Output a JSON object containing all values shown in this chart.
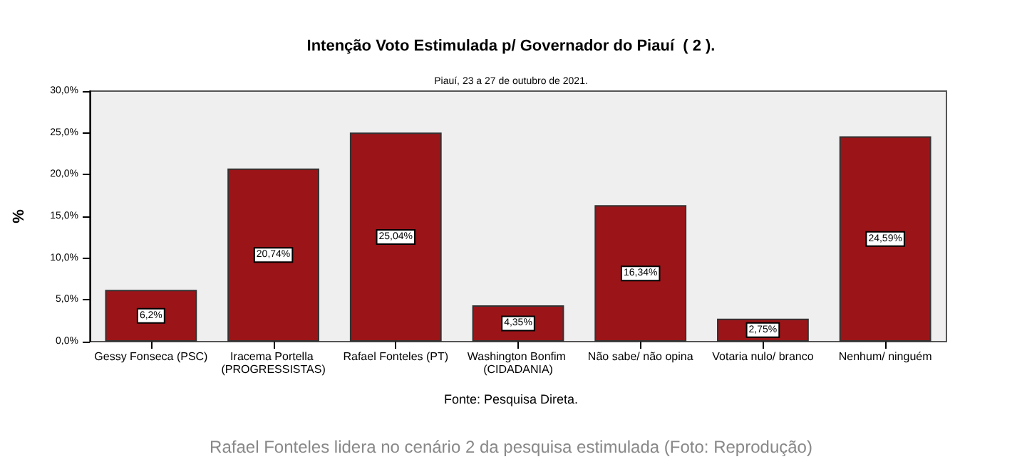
{
  "chart_data": {
    "type": "bar",
    "title": "Intenção Voto Estimulada p/ Governador do Piauí  ( 2 ).",
    "subtitle": "Piauí, 23 a 27 de outubro de 2021.",
    "ylabel": "%",
    "categories": [
      "Gessy Fonseca (PSC)",
      "Iracema Portella (PROGRESSISTAS)",
      "Rafael Fonteles (PT)",
      "Washington Bonfim (CIDADANIA)",
      "Não sabe/ não opina",
      "Votaria nulo/ branco",
      "Nenhum/ ninguém"
    ],
    "values": [
      6.2,
      20.74,
      25.04,
      4.35,
      16.34,
      2.75,
      24.59
    ],
    "value_labels": [
      "6,2%",
      "20,74%",
      "25,04%",
      "4,35%",
      "16,34%",
      "2,75%",
      "24,59%"
    ],
    "color": "#9b1518",
    "ylim": [
      0,
      30
    ],
    "yticks": [
      {
        "value": 0,
        "label": "0,0%"
      },
      {
        "value": 5,
        "label": "5,0%"
      },
      {
        "value": 10,
        "label": "10,0%"
      },
      {
        "value": 15,
        "label": "15,0%"
      },
      {
        "value": 20,
        "label": "20,0%"
      },
      {
        "value": 25,
        "label": "25,0%"
      },
      {
        "value": 30,
        "label": "30,0%"
      }
    ],
    "grid": false,
    "annotations": [
      "Fonte: Pesquisa Direta.",
      "Rafael Fonteles lidera no cenário 2 da pesquisa estimulada (Foto: Reprodução)"
    ]
  }
}
